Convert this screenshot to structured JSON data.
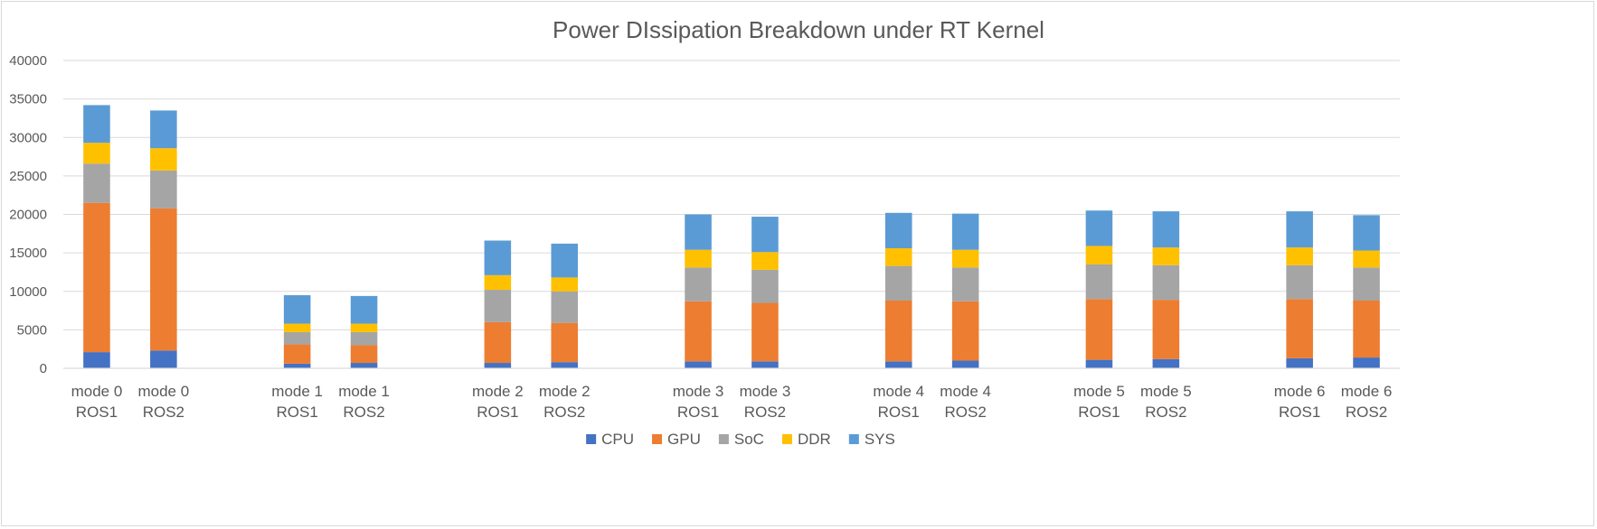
{
  "chart_data": {
    "type": "bar",
    "stacked": true,
    "title": "Power DIssipation Breakdown under RT Kernel",
    "xlabel": "",
    "ylabel": "",
    "ylim": [
      0,
      40000
    ],
    "yticks": [
      0,
      5000,
      10000,
      15000,
      20000,
      25000,
      30000,
      35000,
      40000
    ],
    "grid": true,
    "legend_position": "bottom",
    "groups": [
      "mode 0",
      "mode 1",
      "mode 2",
      "mode 3",
      "mode 4",
      "mode 5",
      "mode 6"
    ],
    "subcategories": [
      "ROS1",
      "ROS2"
    ],
    "categories": [
      "mode 0 ROS1",
      "mode 0 ROS2",
      "mode 1 ROS1",
      "mode 1 ROS2",
      "mode 2 ROS1",
      "mode 2 ROS2",
      "mode 3 ROS1",
      "mode 3 ROS2",
      "mode 4 ROS1",
      "mode 4 ROS2",
      "mode 5 ROS1",
      "mode 5 ROS2",
      "mode 6 ROS1",
      "mode 6 ROS2"
    ],
    "series": [
      {
        "name": "CPU",
        "color": "#4472c4",
        "values": [
          2100,
          2300,
          600,
          700,
          700,
          800,
          900,
          900,
          900,
          1000,
          1100,
          1200,
          1300,
          1400
        ]
      },
      {
        "name": "GPU",
        "color": "#ed7d31",
        "values": [
          19400,
          18500,
          2500,
          2300,
          5300,
          5100,
          7800,
          7600,
          7900,
          7700,
          7900,
          7700,
          7700,
          7400
        ]
      },
      {
        "name": "SoC",
        "color": "#a5a5a5",
        "values": [
          5100,
          4900,
          1600,
          1700,
          4200,
          4100,
          4400,
          4300,
          4500,
          4400,
          4500,
          4500,
          4400,
          4300
        ]
      },
      {
        "name": "DDR",
        "color": "#ffc000",
        "values": [
          2700,
          2900,
          1100,
          1100,
          1900,
          1800,
          2300,
          2300,
          2300,
          2300,
          2400,
          2300,
          2300,
          2200
        ]
      },
      {
        "name": "SYS",
        "color": "#5b9bd5",
        "values": [
          4900,
          4900,
          3700,
          3600,
          4500,
          4400,
          4600,
          4600,
          4600,
          4700,
          4600,
          4700,
          4700,
          4600
        ]
      }
    ]
  }
}
